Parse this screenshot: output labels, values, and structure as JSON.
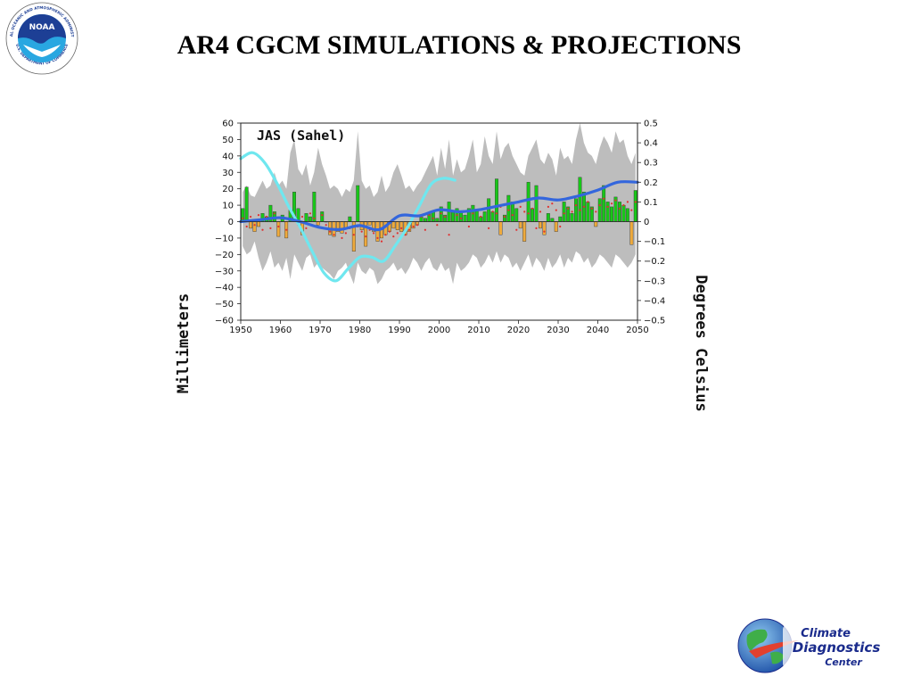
{
  "slide": {
    "title": "AR4 CGCM SIMULATIONS & PROJECTIONS"
  },
  "logos": {
    "noaa": {
      "center_text": "NOAA",
      "ring_top": "NATIONAL OCEANIC AND ATMOSPHERIC ADMINISTRATION",
      "ring_bottom": "U.S. DEPARTMENT OF COMMERCE",
      "colors": {
        "navy": "#1d3f95",
        "blue": "#29a7e1"
      }
    },
    "climate_diagnostics": {
      "line1": "Climate",
      "line2": "Diagnostics",
      "line3": "Center",
      "colors": {
        "text": "#1a2b8c",
        "globe": "#2c6fc4",
        "land": "#3fae49",
        "flare": "#e2402e"
      }
    }
  },
  "chart_data": {
    "type": "bar",
    "annotation": "JAS (Sahel)",
    "xlabel": "",
    "ylabel": "Millimeters",
    "y2label": "Degrees Celsius",
    "xlim": [
      1950,
      2050
    ],
    "ylim": [
      -60,
      60
    ],
    "y2lim": [
      -0.5,
      0.5
    ],
    "xticks": [
      1950,
      1960,
      1970,
      1980,
      1990,
      2000,
      2010,
      2020,
      2030,
      2040,
      2050
    ],
    "yticks": [
      -60,
      -50,
      -40,
      -30,
      -20,
      -10,
      0,
      10,
      20,
      30,
      40,
      50,
      60
    ],
    "y2ticks": [
      "-0.5",
      "-0.4",
      "-0.3",
      "-0.2",
      "-0.1",
      "0",
      "0.1",
      "0.2",
      "0.3",
      "0.4",
      "0.5"
    ],
    "colors": {
      "positive_bar": "#18c718",
      "negative_bar": "#eeaa3c",
      "spread": "#bdbdbd",
      "cyan_line": "#6fe7ef",
      "blue_line": "#3366dd",
      "dots": "#e03030"
    },
    "grid": false,
    "legend": "none",
    "years": [
      1950,
      1951,
      1952,
      1953,
      1954,
      1955,
      1956,
      1957,
      1958,
      1959,
      1960,
      1961,
      1962,
      1963,
      1964,
      1965,
      1966,
      1967,
      1968,
      1969,
      1970,
      1971,
      1972,
      1973,
      1974,
      1975,
      1976,
      1977,
      1978,
      1979,
      1980,
      1981,
      1982,
      1983,
      1984,
      1985,
      1986,
      1987,
      1988,
      1989,
      1990,
      1991,
      1992,
      1993,
      1994,
      1995,
      1996,
      1997,
      1998,
      1999,
      2000,
      2001,
      2002,
      2003,
      2004,
      2005,
      2006,
      2007,
      2008,
      2009,
      2010,
      2011,
      2012,
      2013,
      2014,
      2015,
      2016,
      2017,
      2018,
      2019,
      2020,
      2021,
      2022,
      2023,
      2024,
      2025,
      2026,
      2027,
      2028,
      2029,
      2030,
      2031,
      2032,
      2033,
      2034,
      2035,
      2036,
      2037,
      2038,
      2039,
      2040,
      2041,
      2042,
      2043,
      2044,
      2045,
      2046,
      2047,
      2048,
      2049
    ],
    "precip_anomaly_mm": [
      8,
      21,
      -4,
      -6,
      -3,
      5,
      3,
      10,
      6,
      -9,
      4,
      -10,
      7,
      18,
      8,
      -8,
      5,
      3,
      18,
      -2,
      6,
      0,
      -8,
      -9,
      -6,
      -7,
      -4,
      3,
      -18,
      22,
      -5,
      -15,
      -2,
      -6,
      -12,
      -10,
      -8,
      -6,
      -4,
      -5,
      -6,
      -8,
      -6,
      -4,
      -2,
      3,
      2,
      5,
      6,
      2,
      9,
      4,
      12,
      6,
      8,
      6,
      4,
      8,
      10,
      7,
      3,
      6,
      14,
      6,
      26,
      -8,
      4,
      16,
      12,
      8,
      -4,
      -12,
      24,
      8,
      22,
      -4,
      -8,
      5,
      2,
      -6,
      3,
      12,
      9,
      5,
      14,
      27,
      18,
      12,
      9,
      -3,
      14,
      22,
      12,
      9,
      15,
      12,
      10,
      8,
      -14,
      19
    ],
    "model_spread_mm": {
      "upper": [
        18,
        22,
        16,
        15,
        20,
        25,
        20,
        22,
        30,
        22,
        25,
        20,
        42,
        50,
        32,
        28,
        35,
        22,
        30,
        45,
        35,
        28,
        20,
        22,
        20,
        15,
        20,
        18,
        25,
        55,
        25,
        20,
        22,
        15,
        18,
        28,
        18,
        22,
        30,
        35,
        28,
        20,
        22,
        18,
        22,
        25,
        30,
        35,
        40,
        28,
        45,
        32,
        50,
        28,
        38,
        30,
        32,
        40,
        50,
        30,
        35,
        52,
        40,
        35,
        55,
        38,
        45,
        48,
        40,
        35,
        30,
        28,
        40,
        45,
        50,
        38,
        35,
        42,
        38,
        28,
        45,
        38,
        40,
        35,
        50,
        60,
        48,
        42,
        40,
        35,
        45,
        52,
        48,
        42,
        55,
        48,
        50,
        40,
        35,
        42
      ],
      "lower": [
        -15,
        -20,
        -18,
        -12,
        -22,
        -30,
        -25,
        -18,
        -28,
        -25,
        -30,
        -22,
        -35,
        -20,
        -25,
        -30,
        -22,
        -20,
        -28,
        -25,
        -28,
        -30,
        -32,
        -35,
        -30,
        -28,
        -25,
        -32,
        -38,
        -25,
        -30,
        -32,
        -28,
        -30,
        -38,
        -35,
        -30,
        -28,
        -25,
        -30,
        -28,
        -32,
        -28,
        -22,
        -25,
        -30,
        -25,
        -22,
        -28,
        -30,
        -25,
        -30,
        -28,
        -38,
        -25,
        -30,
        -28,
        -25,
        -20,
        -22,
        -28,
        -25,
        -20,
        -25,
        -18,
        -25,
        -20,
        -22,
        -28,
        -25,
        -30,
        -25,
        -20,
        -28,
        -22,
        -25,
        -30,
        -22,
        -28,
        -25,
        -20,
        -28,
        -22,
        -25,
        -18,
        -20,
        -25,
        -22,
        -28,
        -25,
        -20,
        -22,
        -25,
        -28,
        -20,
        -22,
        -25,
        -28,
        -25,
        -20
      ]
    },
    "model_mean_dots_mm": [
      2,
      -3,
      3,
      -2,
      4,
      -5,
      3,
      -4,
      5,
      -3,
      2,
      -5,
      6,
      4,
      -2,
      3,
      -4,
      5,
      2,
      -3,
      4,
      -2,
      -6,
      -8,
      -5,
      -10,
      -7,
      -4,
      -8,
      -3,
      -6,
      -9,
      -5,
      -7,
      -10,
      -12,
      -8,
      -6,
      -9,
      -7,
      -4,
      -8,
      -5,
      -3,
      -2,
      3,
      -5,
      4,
      2,
      -2,
      5,
      3,
      -8,
      6,
      4,
      2,
      6,
      -3,
      5,
      7,
      3,
      8,
      -4,
      6,
      5,
      9,
      3,
      7,
      4,
      -5,
      9,
      6,
      5,
      8,
      -4,
      6,
      -6,
      9,
      11,
      7,
      -3,
      5,
      8,
      6,
      10,
      7,
      9,
      12,
      8,
      6,
      10,
      14,
      9,
      11,
      13,
      8,
      10,
      12,
      7,
      12
    ],
    "cyan_line": [
      [
        1950,
        0.32
      ],
      [
        1953,
        0.35
      ],
      [
        1956,
        0.3
      ],
      [
        1959,
        0.2
      ],
      [
        1962,
        0.08
      ],
      [
        1965,
        -0.03
      ],
      [
        1968,
        -0.15
      ],
      [
        1971,
        -0.26
      ],
      [
        1974,
        -0.3
      ],
      [
        1977,
        -0.24
      ],
      [
        1980,
        -0.18
      ],
      [
        1983,
        -0.18
      ],
      [
        1986,
        -0.2
      ],
      [
        1989,
        -0.12
      ],
      [
        1992,
        -0.03
      ],
      [
        1995,
        0.08
      ],
      [
        1998,
        0.19
      ],
      [
        2001,
        0.22
      ],
      [
        2004,
        0.21
      ]
    ],
    "blue_line": [
      [
        1950,
        0.0
      ],
      [
        1955,
        0.01
      ],
      [
        1960,
        0.02
      ],
      [
        1965,
        0.0
      ],
      [
        1970,
        -0.03
      ],
      [
        1975,
        -0.04
      ],
      [
        1980,
        -0.02
      ],
      [
        1985,
        -0.04
      ],
      [
        1990,
        0.03
      ],
      [
        1995,
        0.03
      ],
      [
        2000,
        0.06
      ],
      [
        2005,
        0.05
      ],
      [
        2010,
        0.06
      ],
      [
        2015,
        0.08
      ],
      [
        2020,
        0.1
      ],
      [
        2025,
        0.12
      ],
      [
        2030,
        0.11
      ],
      [
        2035,
        0.13
      ],
      [
        2040,
        0.16
      ],
      [
        2045,
        0.2
      ],
      [
        2050,
        0.2
      ]
    ]
  }
}
